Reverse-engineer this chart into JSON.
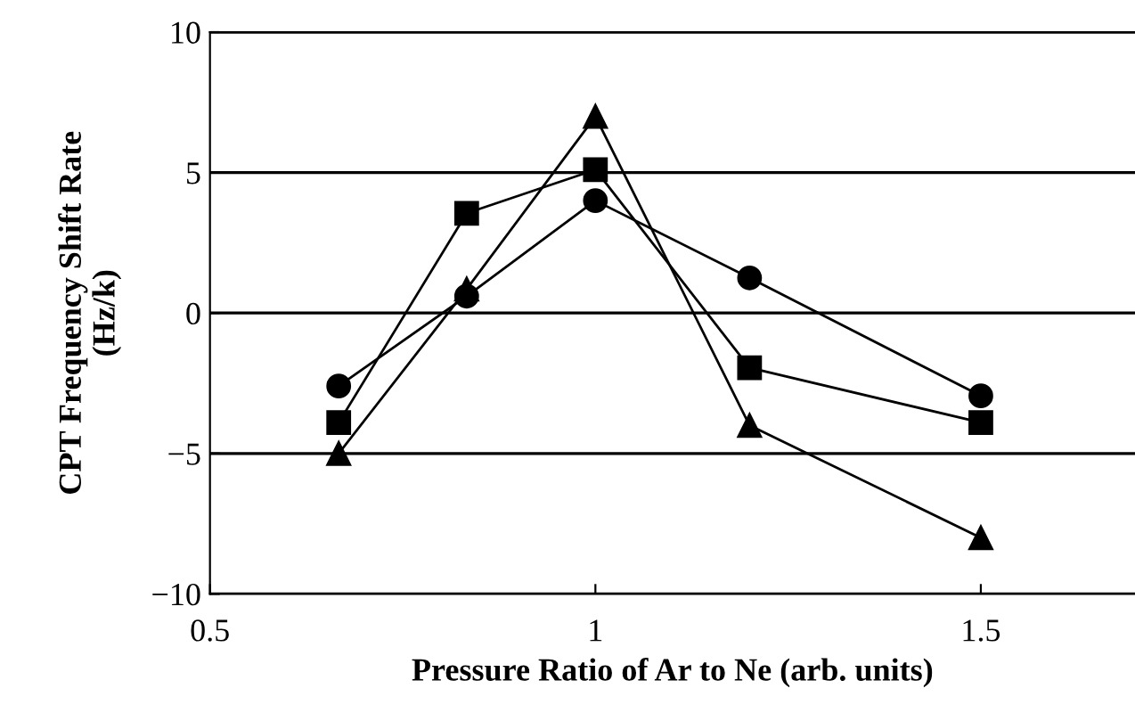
{
  "chart_data": {
    "type": "line",
    "xlabel": "Pressure Ratio of Ar to Ne (arb. units)",
    "ylabel": "CPT Frequency Shift Rate\n(Hz/k)",
    "x": [
      0.667,
      0.833,
      1.0,
      1.2,
      1.5
    ],
    "series": [
      {
        "color": "#000000",
        "marker": "circle",
        "values": [
          -2.6,
          0.6,
          4.0,
          1.25,
          -2.95
        ]
      },
      {
        "color": "#000000",
        "marker": "square",
        "values": [
          -3.9,
          3.55,
          5.1,
          -1.95,
          -3.9
        ]
      },
      {
        "color": "#000000",
        "marker": "triangle",
        "values": [
          -5.0,
          0.85,
          7.0,
          -4.0,
          -8.0
        ]
      }
    ],
    "xlim": [
      0.5,
      1.7
    ],
    "xticks": [
      0.5,
      1,
      1.5
    ],
    "ylim": [
      -10,
      10
    ],
    "yticks": [
      -10,
      -5,
      0,
      5,
      10
    ],
    "grid": "y",
    "line_style": "solid",
    "legend": false
  }
}
